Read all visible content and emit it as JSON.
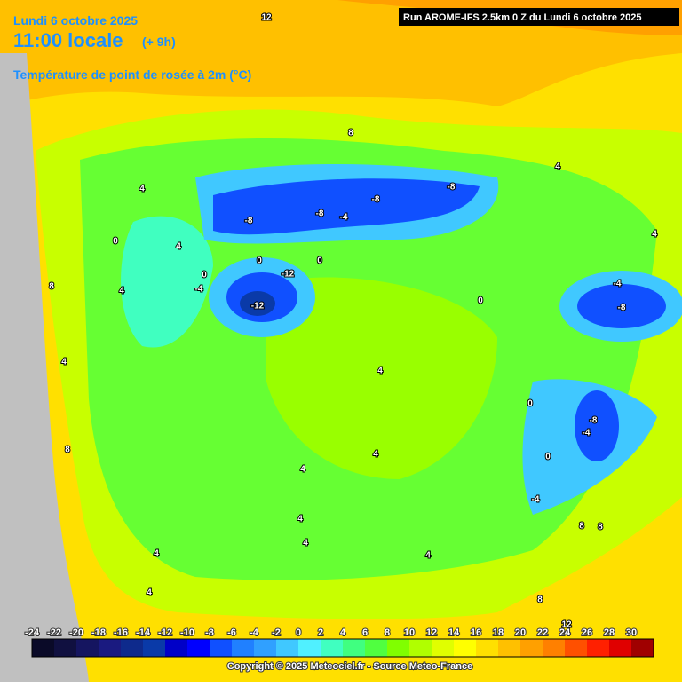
{
  "header": {
    "date": "Lundi 6 octobre 2025",
    "time": "11:00 locale",
    "lead": "(+ 9h)",
    "parameter": "Température de point de rosée à 2m (°C)",
    "run": "Run AROME-IFS 2.5km 0 Z du Lundi 6 octobre 2025"
  },
  "map": {
    "contour_labels": [
      "12",
      "8",
      "4",
      "0",
      "4",
      "8",
      "4",
      "0",
      "-4",
      "-8",
      "0",
      "-12",
      "0",
      "-12",
      "-8",
      "-4",
      "-8",
      "-8",
      "4",
      "4",
      "-4",
      "-8",
      "4",
      "4",
      "0",
      "-8",
      "-4",
      "0",
      "-4",
      "8",
      "4",
      "4",
      "4",
      "4",
      "4",
      "4",
      "8",
      "8",
      "4",
      "8",
      "12",
      "0"
    ]
  },
  "colorbar": {
    "ticks": [
      -24,
      -22,
      -20,
      -18,
      -16,
      -14,
      -12,
      -10,
      -8,
      -6,
      -4,
      -2,
      0,
      2,
      4,
      6,
      8,
      10,
      12,
      14,
      16,
      18,
      20,
      22,
      24,
      26,
      28,
      30
    ],
    "colors": [
      "#0a0a28",
      "#101040",
      "#151560",
      "#1a1a80",
      "#0e2a8c",
      "#0a3aa8",
      "#0000c8",
      "#0000ff",
      "#1050ff",
      "#2080ff",
      "#30a0ff",
      "#40c8ff",
      "#50f0ff",
      "#40ffc0",
      "#40ff80",
      "#50ff40",
      "#80ff00",
      "#b0ff00",
      "#e0ff00",
      "#ffff00",
      "#ffe000",
      "#ffc000",
      "#ffa000",
      "#ff8000",
      "#ff5000",
      "#ff2000",
      "#e00000",
      "#a00000"
    ]
  },
  "footer": {
    "copyright": "Copyright © 2025 Meteociel.fr - Source Meteo-France"
  }
}
